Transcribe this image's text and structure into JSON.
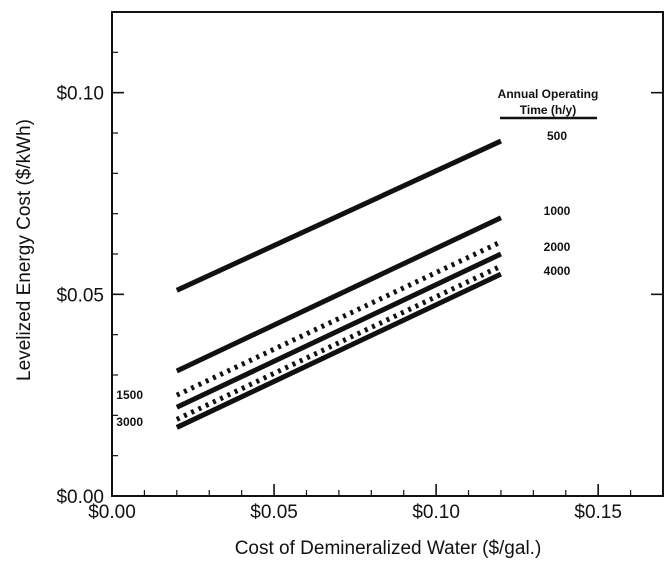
{
  "chart_data": {
    "type": "line",
    "title": "",
    "xlabel": "Cost of Demineralized Water ($/gal.)",
    "ylabel": "Levelized Energy Cost ($/kWh)",
    "xlim": [
      0,
      0.17
    ],
    "ylim": [
      0,
      0.12
    ],
    "x_ticks": [
      {
        "value": 0.0,
        "label": "$0.00"
      },
      {
        "value": 0.05,
        "label": "$0.05"
      },
      {
        "value": 0.1,
        "label": "$0.10"
      },
      {
        "value": 0.15,
        "label": "$0.15"
      }
    ],
    "y_ticks": [
      {
        "value": 0.0,
        "label": "$0.00"
      },
      {
        "value": 0.05,
        "label": "$0.05"
      },
      {
        "value": 0.1,
        "label": "$0.10"
      }
    ],
    "legend_title": "Annual Operating Time (h/y)",
    "legend_title_lines": [
      "Annual Operating",
      "Time (h/y)"
    ],
    "grid": false,
    "series": [
      {
        "name": "500",
        "style": "solid",
        "x": [
          0.02,
          0.12
        ],
        "y": [
          0.051,
          0.088
        ],
        "label_side": "right"
      },
      {
        "name": "1000",
        "style": "solid",
        "x": [
          0.02,
          0.12
        ],
        "y": [
          0.031,
          0.069
        ],
        "label_side": "right"
      },
      {
        "name": "1500",
        "style": "dotted",
        "x": [
          0.02,
          0.12
        ],
        "y": [
          0.025,
          0.063
        ],
        "label_side": "left"
      },
      {
        "name": "2000",
        "style": "solid",
        "x": [
          0.02,
          0.12
        ],
        "y": [
          0.022,
          0.06
        ],
        "label_side": "right"
      },
      {
        "name": "3000",
        "style": "dotted",
        "x": [
          0.02,
          0.12
        ],
        "y": [
          0.019,
          0.057
        ],
        "label_side": "left"
      },
      {
        "name": "4000",
        "style": "solid",
        "x": [
          0.02,
          0.12
        ],
        "y": [
          0.017,
          0.055
        ],
        "label_side": "right"
      }
    ]
  }
}
